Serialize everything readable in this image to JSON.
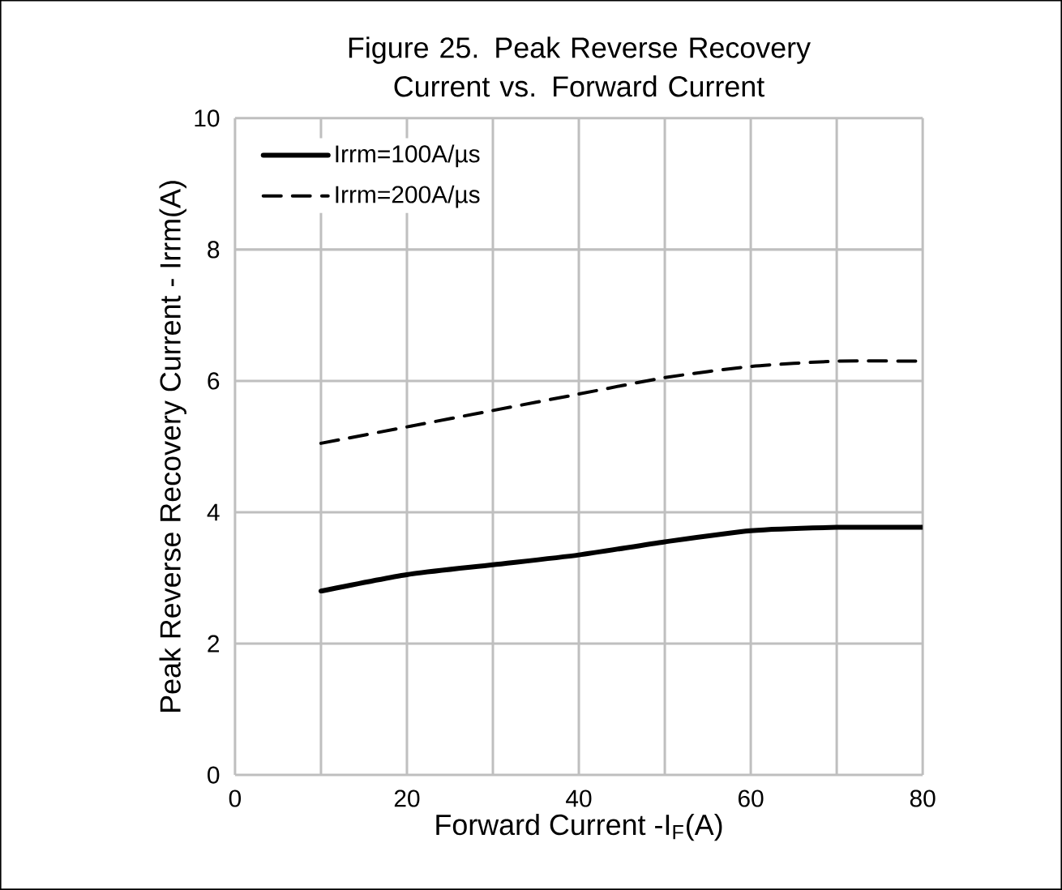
{
  "chart_data": {
    "type": "line",
    "title": "Figure 25. Peak Reverse Recovery Current vs. Forward Current",
    "xlabel": "Forward Current -I$_{F}$(A)",
    "ylabel": "Peak Reverse Recovery Current - Irrm(A)",
    "x": [
      10,
      20,
      30,
      40,
      50,
      60,
      70,
      80
    ],
    "series": [
      {
        "name": "Irrm=100A/µs",
        "color": "#000000",
        "line_style": "solid",
        "values": [
          2.8,
          3.05,
          3.2,
          3.35,
          3.55,
          3.72,
          3.77,
          3.77
        ]
      },
      {
        "name": "Irrm=200A/µs",
        "color": "#000000",
        "line_style": "dashed",
        "values": [
          5.05,
          5.3,
          5.55,
          5.8,
          6.05,
          6.22,
          6.3,
          6.3
        ]
      }
    ],
    "xlim": [
      0,
      80
    ],
    "ylim": [
      0,
      10
    ],
    "xticks": [
      0,
      {
        "value": 10,
        "label": null
      },
      20,
      {
        "value": 30,
        "label": null
      },
      40,
      {
        "value": 50,
        "label": null
      },
      60,
      {
        "value": 70,
        "label": null
      },
      80
    ],
    "yticks": [
      0,
      2,
      4,
      6,
      8,
      10
    ],
    "grid": true,
    "legend": "top left",
    "marker": "none"
  }
}
